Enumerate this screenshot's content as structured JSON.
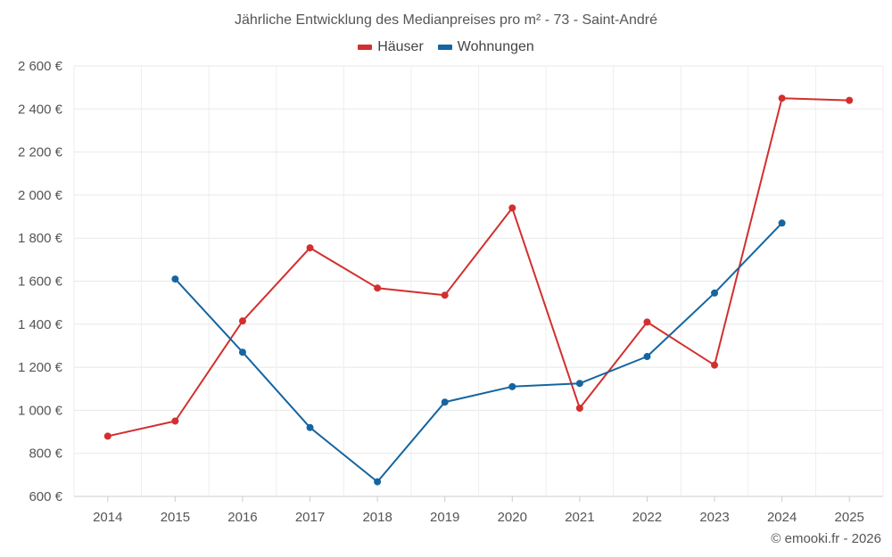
{
  "chart_data": {
    "type": "line",
    "title": "Jährliche Entwicklung des Medianpreises pro m² - 73 - Saint-André",
    "categories": [
      "2014",
      "2015",
      "2016",
      "2017",
      "2018",
      "2019",
      "2020",
      "2021",
      "2022",
      "2023",
      "2024",
      "2025"
    ],
    "series": [
      {
        "name": "Häuser",
        "color": "#d32f2f",
        "values": [
          880,
          950,
          1415,
          1755,
          1568,
          1535,
          1940,
          1010,
          1410,
          1210,
          2450,
          2440
        ]
      },
      {
        "name": "Wohnungen",
        "color": "#1565a0",
        "values": [
          null,
          1610,
          1270,
          920,
          668,
          1038,
          1110,
          1125,
          1250,
          1545,
          1870,
          null
        ]
      }
    ],
    "ylim": [
      600,
      2600
    ],
    "yticks": [
      600,
      800,
      1000,
      1200,
      1400,
      1600,
      1800,
      2000,
      2200,
      2400,
      2600
    ],
    "ytick_labels": [
      "600 €",
      "800 €",
      "1 000 €",
      "1 200 €",
      "1 400 €",
      "1 600 €",
      "1 800 €",
      "2 000 €",
      "2 200 €",
      "2 400 €",
      "2 600 €"
    ],
    "xlabel": "",
    "ylabel": "",
    "grid": true,
    "legend_position": "top-center"
  },
  "copyright": "© emooki.fr - 2026"
}
